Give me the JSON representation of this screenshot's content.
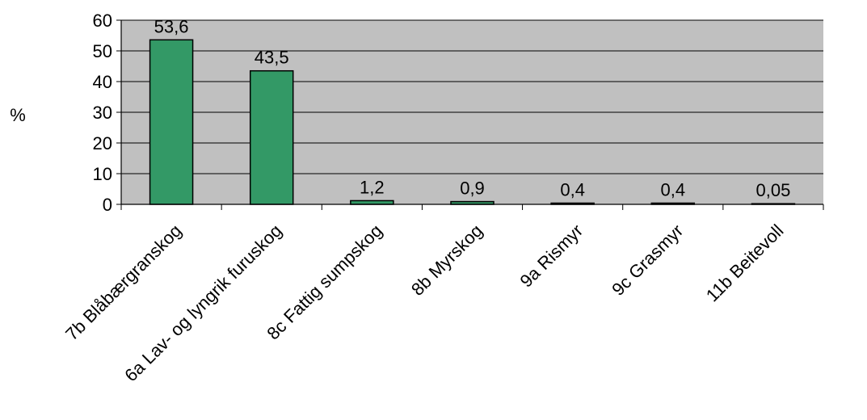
{
  "chart_data": {
    "type": "bar",
    "ylabel": "%",
    "xlabel": "",
    "title": "",
    "ylim": [
      0,
      60
    ],
    "yticks": [
      "0",
      "10",
      "20",
      "30",
      "40",
      "50",
      "60"
    ],
    "ytick_values": [
      0,
      10,
      20,
      30,
      40,
      50,
      60
    ],
    "categories": [
      "7b Blåbærgranskog",
      "6a Lav- og lyngrik furuskog",
      "8c Fattig sumpskog",
      "8b Myrskog",
      "9a Rismyr",
      "9c Grasmyr",
      "11b Beitevoll"
    ],
    "values": [
      53.6,
      43.5,
      1.2,
      0.9,
      0.4,
      0.4,
      0.05
    ],
    "value_labels": [
      "53,6",
      "43,5",
      "1,2",
      "0,9",
      "0,4",
      "0,4",
      "0,05"
    ],
    "grid": true,
    "legend": "none",
    "colors": {
      "bar_fill": "#339966",
      "bar_stroke": "#000000",
      "plot_bg": "#C0C0C0",
      "grid": "#000000"
    }
  }
}
